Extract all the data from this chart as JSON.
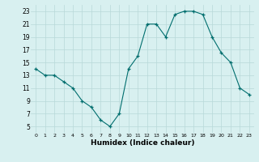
{
  "x": [
    0,
    1,
    2,
    3,
    4,
    5,
    6,
    7,
    8,
    9,
    10,
    11,
    12,
    13,
    14,
    15,
    16,
    17,
    18,
    19,
    20,
    21,
    22,
    23
  ],
  "y": [
    14,
    13,
    13,
    12,
    11,
    9,
    8,
    6,
    5,
    7,
    14,
    16,
    21,
    21,
    19,
    22.5,
    23,
    23,
    22.5,
    19,
    16.5,
    15,
    11,
    10
  ],
  "line_color": "#006e6e",
  "marker_color": "#006e6e",
  "bg_color": "#d8f0f0",
  "grid_color": "#b8d8d8",
  "xlabel": "Humidex (Indice chaleur)",
  "ylim": [
    4,
    24
  ],
  "xlim": [
    -0.5,
    23.5
  ],
  "yticks": [
    5,
    7,
    9,
    11,
    13,
    15,
    17,
    19,
    21,
    23
  ],
  "xticks": [
    0,
    1,
    2,
    3,
    4,
    5,
    6,
    7,
    8,
    9,
    10,
    11,
    12,
    13,
    14,
    15,
    16,
    17,
    18,
    19,
    20,
    21,
    22,
    23
  ]
}
